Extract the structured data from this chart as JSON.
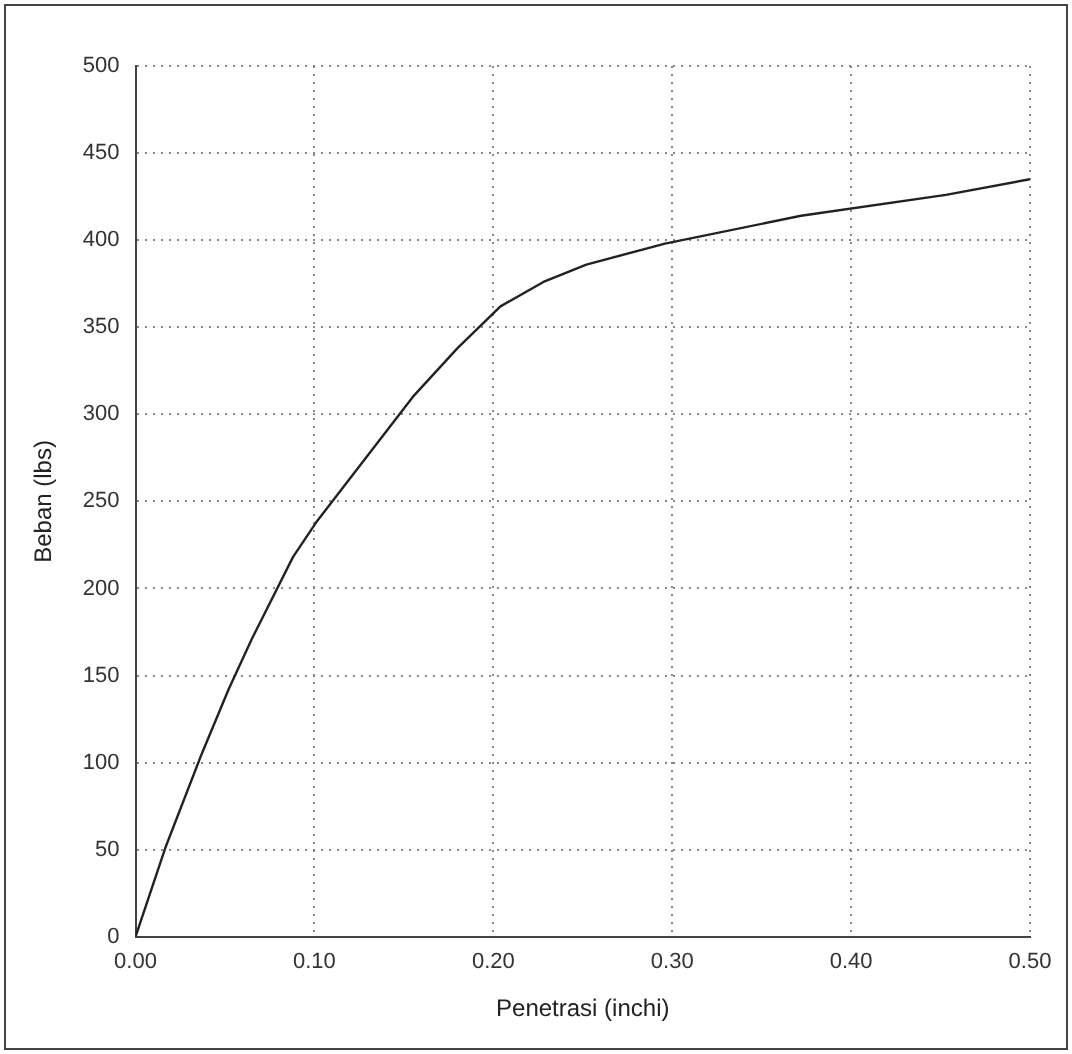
{
  "chart_data": {
    "type": "line",
    "xlabel": "Penetrasi (inchi)",
    "ylabel": "Beban (lbs)",
    "x": [
      0,
      0.017,
      0.037,
      0.052,
      0.065,
      0.088,
      0.101,
      0.119,
      0.155,
      0.18,
      0.204,
      0.228,
      0.252,
      0.296,
      0.372,
      0.453,
      0.5
    ],
    "series": [
      {
        "color": "#222222",
        "values": [
          0,
          52,
          105,
          142,
          171,
          218,
          238,
          262,
          310,
          338,
          362,
          376,
          386,
          398,
          414,
          426,
          435
        ]
      }
    ],
    "xlim": [
      0,
      0.5
    ],
    "xticks": [
      {
        "value": 0,
        "label": "0.00"
      },
      {
        "value": 0.1,
        "label": "0.10"
      },
      {
        "value": 0.2,
        "label": "0.20"
      },
      {
        "value": 0.3,
        "label": "0.30"
      },
      {
        "value": 0.4,
        "label": "0.40"
      },
      {
        "value": 0.5,
        "label": "0.50"
      }
    ],
    "ylim": [
      0,
      500
    ],
    "yticks": [
      0,
      50,
      100,
      150,
      200,
      250,
      300,
      350,
      400,
      450,
      500
    ],
    "grid": true,
    "legend": false,
    "marker": "none",
    "line_style": "solid"
  }
}
